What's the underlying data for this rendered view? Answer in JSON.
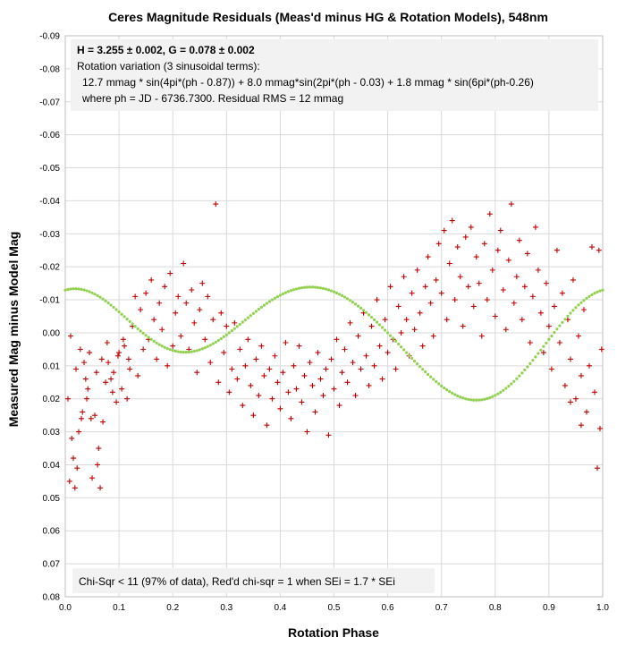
{
  "chart_data": {
    "type": "scatter",
    "title": "Ceres Magnitude Residuals (Meas'd minus HG & Rotation Models), 548nm",
    "xlabel": "Rotation Phase",
    "ylabel": "Measured Mag minus Model Mag",
    "xlim": [
      0.0,
      1.0
    ],
    "ylim": [
      -0.09,
      0.08
    ],
    "y_inverted": true,
    "grid": true,
    "x_ticks": [
      "0.0",
      "0.1",
      "0.2",
      "0.3",
      "0.4",
      "0.5",
      "0.6",
      "0.7",
      "0.8",
      "0.9",
      "1.0"
    ],
    "y_ticks": [
      "-0.09",
      "-0.08",
      "-0.07",
      "-0.06",
      "-0.05",
      "-0.04",
      "-0.03",
      "-0.02",
      "-0.01",
      "0.00",
      "0.01",
      "0.02",
      "0.03",
      "0.04",
      "0.05",
      "0.06",
      "0.07",
      "0.08"
    ],
    "colors": {
      "points": "#c00000",
      "model_curve": "#92d050",
      "box_fill": "#f2f2f2",
      "grid": "#d9d9d9"
    },
    "model": {
      "a1_mag": 0.0127,
      "phase1": 0.87,
      "a2_mag": 0.008,
      "phase2": 0.03,
      "a3_mag": 0.0018,
      "phase3": 0.26,
      "rms_mag": 0.012
    },
    "annotations": {
      "hg_line": "H = 3.255 ± 0.002, G = 0.078 ± 0.002",
      "rotation_label": "Rotation variation (3 sinusoidal  terms):",
      "formula": "12.7 mmag * sin(4pi*(ph  - 0.87)) + 8.0 mmag*sin(2pi*(ph  - 0.03) + 1.8 mmag * sin(6pi*(ph-0.26)",
      "where_line": "where ph = JD - 6736.7300. Residual  RMS = 12 mmag",
      "chisq_line": "Chi-Sqr  < 11 (97% of data), Red'd chi-sqr = 1 when SEi = 1.7 * SEi"
    },
    "points": [
      [
        0.005,
        0.02
      ],
      [
        0.008,
        0.045
      ],
      [
        0.012,
        0.032
      ],
      [
        0.015,
        0.038
      ],
      [
        0.018,
        0.047
      ],
      [
        0.022,
        0.041
      ],
      [
        0.025,
        0.03
      ],
      [
        0.03,
        0.026
      ],
      [
        0.032,
        0.024
      ],
      [
        0.035,
        0.009
      ],
      [
        0.04,
        0.02
      ],
      [
        0.042,
        0.017
      ],
      [
        0.045,
        0.006
      ],
      [
        0.048,
        0.026
      ],
      [
        0.05,
        0.044
      ],
      [
        0.055,
        0.025
      ],
      [
        0.06,
        0.04
      ],
      [
        0.062,
        0.035
      ],
      [
        0.065,
        0.047
      ],
      [
        0.07,
        0.027
      ],
      [
        0.075,
        0.015
      ],
      [
        0.08,
        0.009
      ],
      [
        0.085,
        0.014
      ],
      [
        0.09,
        0.012
      ],
      [
        0.095,
        0.021
      ],
      [
        0.1,
        0.006
      ],
      [
        0.105,
        0.017
      ],
      [
        0.11,
        0.004
      ],
      [
        0.115,
        0.02
      ],
      [
        0.12,
        0.011
      ],
      [
        0.01,
        0.001
      ],
      [
        0.02,
        0.011
      ],
      [
        0.028,
        0.005
      ],
      [
        0.038,
        0.014
      ],
      [
        0.058,
        0.012
      ],
      [
        0.068,
        0.008
      ],
      [
        0.078,
        0.003
      ],
      [
        0.088,
        0.018
      ],
      [
        0.098,
        0.007
      ],
      [
        0.108,
        0.002
      ],
      [
        0.118,
        0.008
      ],
      [
        0.125,
        -0.002
      ],
      [
        0.13,
        -0.011
      ],
      [
        0.135,
        0.013
      ],
      [
        0.14,
        -0.007
      ],
      [
        0.145,
        0.005
      ],
      [
        0.15,
        -0.012
      ],
      [
        0.155,
        0.002
      ],
      [
        0.16,
        -0.016
      ],
      [
        0.165,
        -0.004
      ],
      [
        0.17,
        0.008
      ],
      [
        0.175,
        -0.009
      ],
      [
        0.18,
        -0.001
      ],
      [
        0.185,
        -0.014
      ],
      [
        0.19,
        0.01
      ],
      [
        0.195,
        -0.018
      ],
      [
        0.2,
        0.004
      ],
      [
        0.205,
        -0.006
      ],
      [
        0.21,
        -0.011
      ],
      [
        0.215,
        0.001
      ],
      [
        0.22,
        -0.021
      ],
      [
        0.225,
        -0.009
      ],
      [
        0.23,
        0.005
      ],
      [
        0.235,
        -0.013
      ],
      [
        0.24,
        -0.003
      ],
      [
        0.245,
        0.012
      ],
      [
        0.25,
        -0.007
      ],
      [
        0.255,
        -0.015
      ],
      [
        0.26,
        0.002
      ],
      [
        0.265,
        -0.011
      ],
      [
        0.27,
        0.009
      ],
      [
        0.275,
        -0.004
      ],
      [
        0.28,
        -0.039
      ],
      [
        0.285,
        0.015
      ],
      [
        0.29,
        -0.006
      ],
      [
        0.295,
        0.006
      ],
      [
        0.3,
        -0.002
      ],
      [
        0.305,
        0.018
      ],
      [
        0.31,
        0.011
      ],
      [
        0.315,
        -0.003
      ],
      [
        0.32,
        0.014
      ],
      [
        0.325,
        0.005
      ],
      [
        0.33,
        0.022
      ],
      [
        0.335,
        0.01
      ],
      [
        0.34,
        0.002
      ],
      [
        0.345,
        0.016
      ],
      [
        0.35,
        0.025
      ],
      [
        0.355,
        0.008
      ],
      [
        0.36,
        0.019
      ],
      [
        0.365,
        0.004
      ],
      [
        0.37,
        0.013
      ],
      [
        0.375,
        0.028
      ],
      [
        0.38,
        0.011
      ],
      [
        0.385,
        0.02
      ],
      [
        0.39,
        0.007
      ],
      [
        0.395,
        0.015
      ],
      [
        0.4,
        0.023
      ],
      [
        0.405,
        0.012
      ],
      [
        0.41,
        0.003
      ],
      [
        0.415,
        0.018
      ],
      [
        0.42,
        0.026
      ],
      [
        0.425,
        0.01
      ],
      [
        0.43,
        0.017
      ],
      [
        0.435,
        0.004
      ],
      [
        0.44,
        0.021
      ],
      [
        0.445,
        0.013
      ],
      [
        0.45,
        0.03
      ],
      [
        0.455,
        0.009
      ],
      [
        0.46,
        0.016
      ],
      [
        0.465,
        0.024
      ],
      [
        0.47,
        0.006
      ],
      [
        0.475,
        0.014
      ],
      [
        0.48,
        0.019
      ],
      [
        0.485,
        0.011
      ],
      [
        0.49,
        0.031
      ],
      [
        0.495,
        0.008
      ],
      [
        0.5,
        0.017
      ],
      [
        0.505,
        0.002
      ],
      [
        0.51,
        0.022
      ],
      [
        0.515,
        0.012
      ],
      [
        0.52,
        0.005
      ],
      [
        0.525,
        0.015
      ],
      [
        0.53,
        -0.003
      ],
      [
        0.535,
        0.009
      ],
      [
        0.54,
        0.019
      ],
      [
        0.545,
        0.001
      ],
      [
        0.55,
        0.011
      ],
      [
        0.555,
        -0.006
      ],
      [
        0.56,
        0.007
      ],
      [
        0.565,
        0.016
      ],
      [
        0.57,
        -0.002
      ],
      [
        0.575,
        0.01
      ],
      [
        0.58,
        -0.01
      ],
      [
        0.585,
        0.004
      ],
      [
        0.59,
        0.014
      ],
      [
        0.595,
        -0.004
      ],
      [
        0.6,
        0.006
      ],
      [
        0.605,
        -0.014
      ],
      [
        0.61,
        0.002
      ],
      [
        0.615,
        0.011
      ],
      [
        0.62,
        -0.008
      ],
      [
        0.625,
        0.0
      ],
      [
        0.63,
        -0.017
      ],
      [
        0.635,
        -0.004
      ],
      [
        0.64,
        0.007
      ],
      [
        0.645,
        -0.012
      ],
      [
        0.65,
        -0.001
      ],
      [
        0.655,
        -0.019
      ],
      [
        0.66,
        -0.006
      ],
      [
        0.665,
        0.004
      ],
      [
        0.67,
        -0.014
      ],
      [
        0.675,
        -0.023
      ],
      [
        0.68,
        -0.009
      ],
      [
        0.685,
        0.001
      ],
      [
        0.69,
        -0.016
      ],
      [
        0.695,
        -0.027
      ],
      [
        0.7,
        -0.012
      ],
      [
        0.705,
        -0.031
      ],
      [
        0.71,
        -0.004
      ],
      [
        0.715,
        -0.021
      ],
      [
        0.72,
        -0.034
      ],
      [
        0.725,
        -0.01
      ],
      [
        0.73,
        -0.026
      ],
      [
        0.735,
        -0.017
      ],
      [
        0.74,
        -0.002
      ],
      [
        0.745,
        -0.029
      ],
      [
        0.75,
        -0.014
      ],
      [
        0.755,
        -0.032
      ],
      [
        0.76,
        -0.008
      ],
      [
        0.765,
        -0.023
      ],
      [
        0.77,
        -0.015
      ],
      [
        0.775,
        0.001
      ],
      [
        0.78,
        -0.027
      ],
      [
        0.785,
        -0.01
      ],
      [
        0.79,
        -0.036
      ],
      [
        0.795,
        -0.019
      ],
      [
        0.8,
        -0.005
      ],
      [
        0.805,
        -0.025
      ],
      [
        0.81,
        -0.031
      ],
      [
        0.815,
        -0.013
      ],
      [
        0.82,
        -0.001
      ],
      [
        0.825,
        -0.022
      ],
      [
        0.83,
        -0.039
      ],
      [
        0.835,
        -0.009
      ],
      [
        0.84,
        -0.017
      ],
      [
        0.845,
        -0.028
      ],
      [
        0.85,
        -0.004
      ],
      [
        0.855,
        -0.014
      ],
      [
        0.86,
        -0.024
      ],
      [
        0.865,
        0.003
      ],
      [
        0.87,
        -0.011
      ],
      [
        0.875,
        -0.032
      ],
      [
        0.88,
        -0.019
      ],
      [
        0.885,
        -0.006
      ],
      [
        0.89,
        0.006
      ],
      [
        0.895,
        -0.015
      ],
      [
        0.9,
        -0.002
      ],
      [
        0.905,
        0.011
      ],
      [
        0.91,
        -0.008
      ],
      [
        0.915,
        -0.025
      ],
      [
        0.92,
        0.003
      ],
      [
        0.925,
        -0.012
      ],
      [
        0.93,
        0.016
      ],
      [
        0.935,
        -0.004
      ],
      [
        0.94,
        0.008
      ],
      [
        0.945,
        -0.016
      ],
      [
        0.95,
        0.02
      ],
      [
        0.955,
        0.001
      ],
      [
        0.96,
        0.013
      ],
      [
        0.965,
        -0.007
      ],
      [
        0.97,
        0.024
      ],
      [
        0.975,
        0.01
      ],
      [
        0.98,
        -0.026
      ],
      [
        0.985,
        0.018
      ],
      [
        0.99,
        0.041
      ],
      [
        0.995,
        0.029
      ],
      [
        0.998,
        0.005
      ],
      [
        0.993,
        -0.025
      ],
      [
        0.96,
        0.028
      ],
      [
        0.94,
        0.021
      ]
    ]
  }
}
